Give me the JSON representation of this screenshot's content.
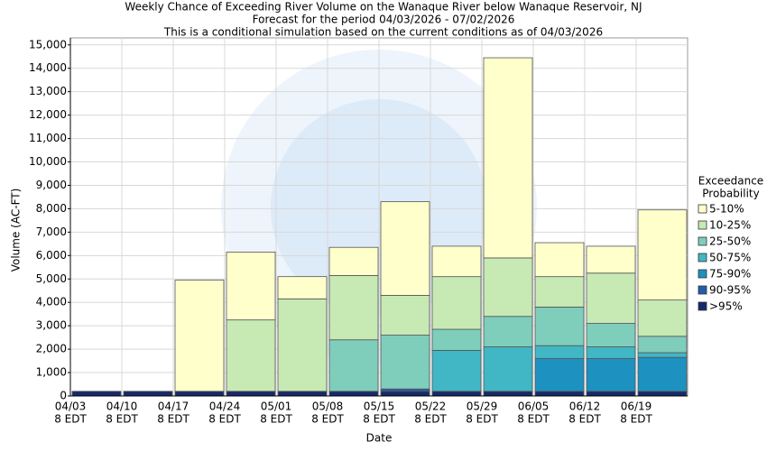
{
  "chart_data": {
    "type": "stacked_bar",
    "title": [
      "Weekly Chance of Exceeding River Volume on the Wanaque River below Wanaque Reservoir, NJ",
      "Forecast for the period 04/03/2026 - 07/02/2026",
      "This is a conditional simulation based on the current conditions as of 04/03/2026"
    ],
    "x_label": "Date",
    "y_label": "Volume (AC-FT)",
    "legend_title": [
      "Exceedance",
      "Probability"
    ],
    "categories": [
      "04/03",
      "04/10",
      "04/17",
      "04/24",
      "05/01",
      "05/08",
      "05/15",
      "05/22",
      "05/29",
      "06/05",
      "06/12",
      "06/19"
    ],
    "category_times": [
      "8 EDT",
      "8 EDT",
      "8 EDT",
      "8 EDT",
      "8 EDT",
      "8 EDT",
      "8 EDT",
      "8 EDT",
      "8 EDT",
      "8 EDT",
      "8 EDT",
      "8 EDT"
    ],
    "series": [
      {
        "name": ">95%",
        "color": "#17296b",
        "values": [
          200,
          200,
          200,
          200,
          200,
          200,
          200,
          200,
          200,
          200,
          200,
          200
        ]
      },
      {
        "name": "90-95%",
        "color": "#225ea8",
        "values": [
          0,
          0,
          0,
          0,
          0,
          0,
          100,
          0,
          0,
          0,
          0,
          0
        ]
      },
      {
        "name": "75-90%",
        "color": "#1d91c0",
        "values": [
          0,
          0,
          0,
          0,
          0,
          0,
          0,
          0,
          0,
          1400,
          1400,
          1450
        ]
      },
      {
        "name": "50-75%",
        "color": "#41b6c4",
        "values": [
          0,
          0,
          0,
          0,
          0,
          0,
          0,
          1750,
          1900,
          550,
          500,
          200
        ]
      },
      {
        "name": "25-50%",
        "color": "#7fcdbb",
        "values": [
          0,
          0,
          0,
          0,
          0,
          2200,
          2300,
          900,
          1300,
          1650,
          1000,
          700
        ]
      },
      {
        "name": "10-25%",
        "color": "#c7e9b4",
        "values": [
          0,
          0,
          0,
          3050,
          3950,
          2750,
          1700,
          2250,
          2500,
          1300,
          2150,
          1550
        ]
      },
      {
        "name": "5-10%",
        "color": "#ffffcc",
        "values": [
          0,
          0,
          4750,
          2900,
          950,
          1200,
          4000,
          1300,
          8550,
          1450,
          1150,
          3850
        ]
      }
    ],
    "ylim": [
      0,
      15300
    ],
    "yticks": [
      0,
      {
        "value": 1000,
        "label": "1,000"
      },
      {
        "value": 2000,
        "label": "2,000"
      },
      {
        "value": 3000,
        "label": "3,000"
      },
      {
        "value": 4000,
        "label": "4,000"
      },
      {
        "value": 5000,
        "label": "5,000"
      },
      {
        "value": 6000,
        "label": "6,000"
      },
      {
        "value": 7000,
        "label": "7,000"
      },
      {
        "value": 8000,
        "label": "8,000"
      },
      {
        "value": 9000,
        "label": "9,000"
      },
      {
        "value": 10000,
        "label": "10,000"
      },
      {
        "value": 11000,
        "label": "11,000"
      },
      {
        "value": 12000,
        "label": "12,000"
      },
      {
        "value": 13000,
        "label": "13,000"
      },
      {
        "value": 14000,
        "label": "14,000"
      },
      {
        "value": 15000,
        "label": "15,000"
      }
    ],
    "grid": true
  }
}
